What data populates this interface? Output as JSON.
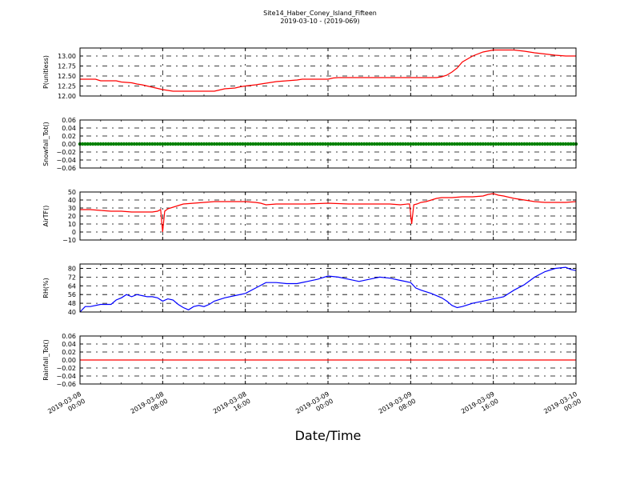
{
  "figure": {
    "title_line1": "Site14_Haber_Coney_Island_Fifteen",
    "title_line2": "2019-03-10 - (2019-069)",
    "xlabel": "Date/Time",
    "x_ticks": [
      {
        "l1": "2019-03-08",
        "l2": "00:00",
        "h": 0
      },
      {
        "l1": "2019-03-08",
        "l2": "08:00",
        "h": 8
      },
      {
        "l1": "2019-03-08",
        "l2": "16:00",
        "h": 16
      },
      {
        "l1": "2019-03-09",
        "l2": "00:00",
        "h": 24
      },
      {
        "l1": "2019-03-09",
        "l2": "08:00",
        "h": 32
      },
      {
        "l1": "2019-03-09",
        "l2": "16:00",
        "h": 40
      },
      {
        "l1": "2019-03-10",
        "l2": "00:00",
        "h": 48
      }
    ]
  },
  "chart_data": [
    {
      "type": "line",
      "ylabel": "P(unitless)",
      "ylim": [
        12.0,
        13.2
      ],
      "yticks": [
        "12.00",
        "12.25",
        "12.50",
        "12.75",
        "13.00"
      ],
      "ytick_vals": [
        12.0,
        12.25,
        12.5,
        12.75,
        13.0
      ],
      "color": "#ff0000",
      "x_hours": [
        0,
        1.5,
        2,
        3.5,
        4,
        5,
        5.5,
        6,
        6.5,
        7,
        7.5,
        8,
        8.5,
        9,
        10,
        12,
        13,
        13.5,
        14,
        15,
        15.5,
        16,
        17,
        18,
        19,
        20,
        21,
        21.5,
        22,
        24,
        24.5,
        25,
        27,
        30,
        33,
        34,
        34.5,
        35,
        35.5,
        36,
        36.5,
        37,
        38,
        39,
        40,
        41,
        42,
        43,
        44,
        45,
        46,
        47,
        48
      ],
      "y": [
        12.42,
        12.42,
        12.38,
        12.38,
        12.35,
        12.33,
        12.3,
        12.28,
        12.25,
        12.22,
        12.19,
        12.16,
        12.14,
        12.12,
        12.12,
        12.12,
        12.12,
        12.15,
        12.18,
        12.2,
        12.23,
        12.25,
        12.28,
        12.32,
        12.36,
        12.38,
        12.4,
        12.42,
        12.42,
        12.42,
        12.45,
        12.46,
        12.46,
        12.46,
        12.46,
        12.46,
        12.46,
        12.48,
        12.52,
        12.6,
        12.7,
        12.85,
        13.0,
        13.1,
        13.15,
        13.15,
        13.15,
        13.12,
        13.08,
        13.05,
        13.02,
        13.0,
        13.0
      ]
    },
    {
      "type": "line",
      "ylabel": "Snowfall_Tot()",
      "ylim": [
        -0.06,
        0.06
      ],
      "yticks": [
        "−0.06",
        "−0.04",
        "−0.02",
        "0.00",
        "0.02",
        "0.04",
        "0.06"
      ],
      "ytick_vals": [
        -0.06,
        -0.04,
        -0.02,
        0.0,
        0.02,
        0.04,
        0.06
      ],
      "color": "#008000",
      "marker": "dots",
      "x_hours": [
        0,
        48
      ],
      "y": [
        0,
        0
      ]
    },
    {
      "type": "line",
      "ylabel": "AirTF()",
      "ylim": [
        -10,
        50
      ],
      "yticks": [
        "−10",
        "0",
        "10",
        "20",
        "30",
        "40",
        "50"
      ],
      "ytick_vals": [
        -10,
        0,
        10,
        20,
        30,
        40,
        50
      ],
      "color": "#ff0000",
      "x_hours": [
        0,
        1,
        2,
        3,
        4,
        5,
        6,
        7,
        7.5,
        7.8,
        8.0,
        8.2,
        8.5,
        9,
        9.5,
        10,
        11,
        12,
        13,
        14,
        15,
        16,
        17,
        17.5,
        18,
        19,
        20,
        21,
        22,
        24,
        26,
        28,
        30,
        31,
        31.7,
        31.9,
        32.1,
        32.3,
        32.6,
        33,
        33.5,
        34,
        34.5,
        35,
        36,
        37,
        38,
        39,
        39.5,
        40,
        40.5,
        41,
        42,
        43,
        44,
        45,
        46,
        47,
        48
      ],
      "y": [
        28,
        28,
        27,
        26,
        26,
        25,
        25,
        25,
        26,
        28,
        0,
        26,
        29,
        31,
        33,
        35,
        36,
        37,
        38,
        38,
        38,
        38,
        37,
        36,
        34,
        35,
        35,
        35,
        35,
        36,
        35,
        35,
        35,
        34,
        35,
        35,
        10,
        34,
        35,
        37,
        38,
        40,
        42,
        43,
        43,
        44,
        44,
        45,
        47,
        48,
        46,
        45,
        42,
        40,
        38,
        37,
        37,
        37,
        38
      ]
    },
    {
      "type": "line",
      "ylabel": "RH(%)",
      "ylim": [
        40,
        84
      ],
      "yticks": [
        "40",
        "48",
        "56",
        "64",
        "72",
        "80"
      ],
      "ytick_vals": [
        40,
        48,
        56,
        64,
        72,
        80
      ],
      "color": "#0000ff",
      "x_hours": [
        0,
        0.5,
        1,
        2,
        3,
        3.5,
        4,
        4.5,
        5,
        5.5,
        6,
        6.5,
        7,
        7.5,
        8,
        8.5,
        9,
        9.5,
        10,
        10.5,
        11,
        11.5,
        12,
        12.5,
        13,
        14,
        15,
        16,
        17,
        18,
        19,
        20,
        21,
        22,
        23,
        24,
        25,
        26,
        27,
        28,
        29,
        30,
        31,
        32,
        32.5,
        33,
        34,
        35,
        35.5,
        36,
        36.5,
        37,
        38,
        39,
        40,
        40.5,
        41,
        42,
        43,
        44,
        45,
        46,
        47,
        47.5,
        48
      ],
      "y": [
        40,
        45,
        45,
        47,
        47,
        51,
        53,
        56,
        54,
        56,
        55,
        54,
        54,
        53,
        50,
        52,
        51,
        47,
        44,
        42,
        45,
        46,
        45,
        47,
        50,
        53,
        55,
        57,
        62,
        67,
        67,
        66,
        66,
        68,
        70,
        73,
        72,
        70,
        68,
        70,
        72,
        71,
        69,
        67,
        62,
        60,
        57,
        53,
        50,
        46,
        44,
        45,
        48,
        50,
        52,
        53,
        54,
        60,
        65,
        72,
        77,
        80,
        81,
        79,
        78
      ]
    },
    {
      "type": "line",
      "ylabel": "Rainfall_Tot()",
      "ylim": [
        -0.06,
        0.06
      ],
      "yticks": [
        "−0.06",
        "−0.04",
        "−0.02",
        "0.00",
        "0.02",
        "0.04",
        "0.06"
      ],
      "ytick_vals": [
        -0.06,
        -0.04,
        -0.02,
        0.0,
        0.02,
        0.04,
        0.06
      ],
      "color": "#ff0000",
      "x_hours": [
        0,
        48
      ],
      "y": [
        0,
        0
      ]
    }
  ]
}
